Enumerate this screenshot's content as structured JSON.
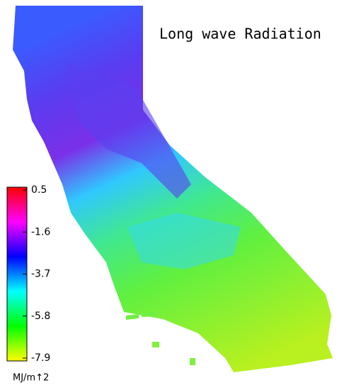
{
  "title": "Long wave Radiation",
  "colorbar": {
    "range": [
      -7.9,
      0.5
    ],
    "ticks": [
      0.5,
      -1.6,
      -3.7,
      -5.8,
      -7.9
    ],
    "unit": "MJ/m↑2",
    "colors": [
      "#ffff00",
      "#00ff00",
      "#00ffff",
      "#0000ff",
      "#ff00ff",
      "#ff0000"
    ]
  }
}
